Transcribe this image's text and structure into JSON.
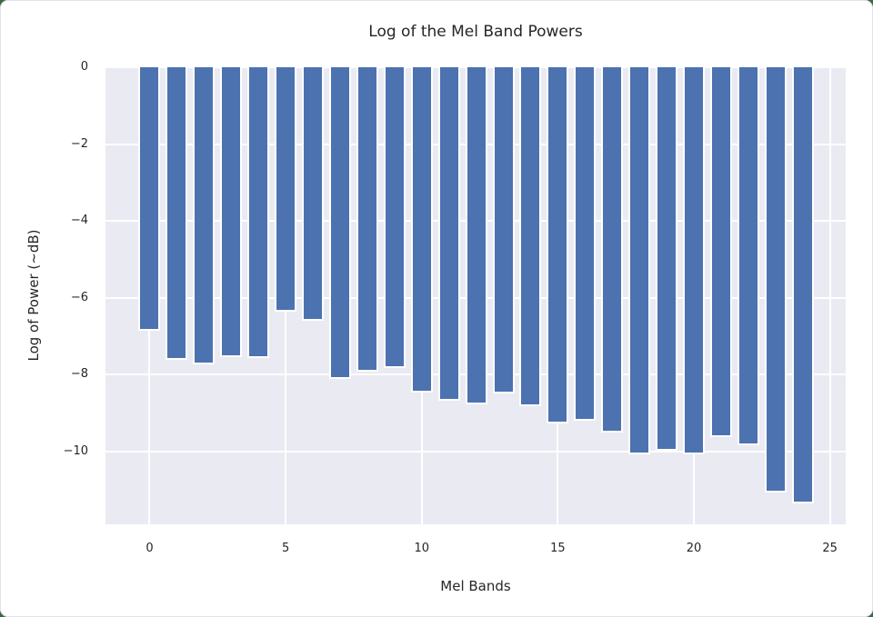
{
  "figure": {
    "title": "Log of the Mel Band Powers",
    "xlabel": "Mel Bands",
    "ylabel": "Log of Power (~dB)"
  },
  "chart_data": {
    "type": "bar",
    "title": "Log of the Mel Band Powers",
    "xlabel": "Mel Bands",
    "ylabel": "Log of Power (~dB)",
    "x": [
      0,
      1,
      2,
      3,
      4,
      5,
      6,
      7,
      8,
      9,
      10,
      11,
      12,
      13,
      14,
      15,
      16,
      17,
      18,
      19,
      20,
      21,
      22,
      23,
      24
    ],
    "values": [
      -6.87,
      -7.61,
      -7.74,
      -7.55,
      -7.57,
      -6.37,
      -6.61,
      -8.11,
      -7.93,
      -7.82,
      -8.46,
      -8.68,
      -8.78,
      -8.49,
      -8.83,
      -9.28,
      -9.19,
      -9.51,
      -10.07,
      -9.99,
      -10.08,
      -9.63,
      -9.85,
      -11.08,
      -11.36
    ],
    "xticks": [
      0,
      5,
      10,
      15,
      20,
      25
    ],
    "xtick_labels": [
      "0",
      "5",
      "10",
      "15",
      "20",
      "25"
    ],
    "yticks": [
      0,
      -2,
      -4,
      -6,
      -8,
      -10
    ],
    "ytick_labels": [
      "0",
      "−2",
      "−4",
      "−6",
      "−8",
      "−10"
    ],
    "xlim": [
      -1.62,
      25.58
    ],
    "ylim": [
      -11.9,
      0
    ],
    "bar_width_fraction": 0.8,
    "grid": true,
    "legend": false,
    "style": "seaborn-darkgrid",
    "colors": {
      "bar": "#4c72b0",
      "bar_edge": "#ffffff",
      "plot_bg": "#eaeaf2",
      "grid": "#ffffff",
      "text": "#262626",
      "figure_bg": "#ffffff",
      "backdrop": "#3b6a3e"
    }
  }
}
